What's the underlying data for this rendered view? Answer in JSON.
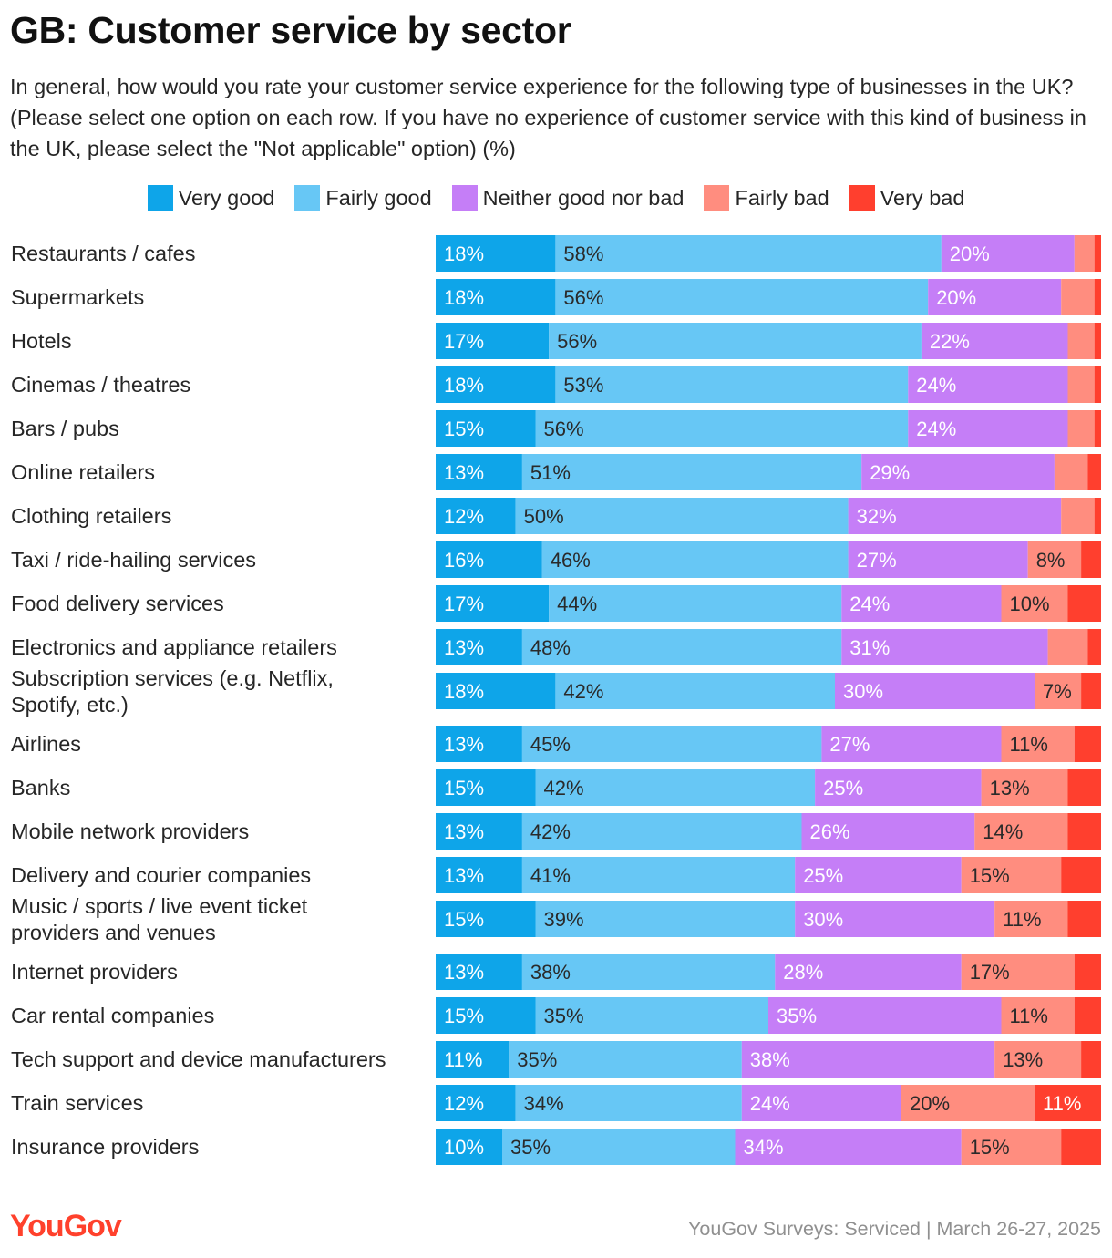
{
  "header": {
    "title": "GB: Customer service by sector",
    "subtitle": "In general, how would you rate your customer service experience for the following type of businesses in the UK? (Please select one option on each row. If you have no experience of customer service with this kind of business in the UK, please select the \"Not applicable\" option) (%)"
  },
  "footer": {
    "logo": "YouGov",
    "source": "YouGov Surveys: Serviced | March 26-27, 2025"
  },
  "chart_data": {
    "type": "bar",
    "orientation": "horizontal",
    "stacked": true,
    "title": "GB: Customer service by sector",
    "xlabel": "",
    "ylabel": "",
    "xlim": [
      0,
      100
    ],
    "legend_position": "top",
    "categories": [
      [
        "Restaurants / cafes"
      ],
      [
        "Supermarkets"
      ],
      [
        "Hotels"
      ],
      [
        "Cinemas / theatres"
      ],
      [
        "Bars / pubs"
      ],
      [
        "Online retailers"
      ],
      [
        "Clothing retailers"
      ],
      [
        "Taxi / ride-hailing services"
      ],
      [
        "Food delivery services"
      ],
      [
        "Electronics and appliance retailers"
      ],
      [
        "Subscription services (e.g. Netflix,",
        "Spotify, etc.)"
      ],
      [
        "Airlines"
      ],
      [
        "Banks"
      ],
      [
        "Mobile network providers"
      ],
      [
        "Delivery and courier companies"
      ],
      [
        "Music / sports / live event ticket",
        "providers and venues"
      ],
      [
        "Internet providers"
      ],
      [
        "Car rental companies"
      ],
      [
        "Tech support and device manufacturers"
      ],
      [
        "Train services"
      ],
      [
        "Insurance providers"
      ]
    ],
    "series": [
      {
        "name": "Very good",
        "color": "#0ea5e9",
        "label_color": "#ffffff",
        "values": [
          18,
          18,
          17,
          18,
          15,
          13,
          12,
          16,
          17,
          13,
          18,
          13,
          15,
          13,
          13,
          15,
          13,
          15,
          11,
          12,
          10
        ]
      },
      {
        "name": "Fairly good",
        "color": "#67c7f5",
        "label_color": "#2a2a2a",
        "values": [
          58,
          56,
          56,
          53,
          56,
          51,
          50,
          46,
          44,
          48,
          42,
          45,
          42,
          42,
          41,
          39,
          38,
          35,
          35,
          34,
          35
        ]
      },
      {
        "name": "Neither good nor bad",
        "color": "#c57ef7",
        "label_color": "#ffffff",
        "values": [
          20,
          20,
          22,
          24,
          24,
          29,
          32,
          27,
          24,
          31,
          30,
          27,
          25,
          26,
          25,
          30,
          28,
          35,
          38,
          24,
          34
        ]
      },
      {
        "name": "Fairly bad",
        "color": "#ff8d7f",
        "label_color": "#2a2a2a",
        "values": [
          3,
          5,
          4,
          4,
          4,
          5,
          5,
          8,
          10,
          6,
          7,
          11,
          13,
          14,
          15,
          11,
          17,
          11,
          13,
          20,
          15
        ]
      },
      {
        "name": "Very bad",
        "color": "#ff3f2e",
        "label_color": "#ffffff",
        "values": [
          1,
          1,
          1,
          1,
          1,
          2,
          1,
          3,
          4,
          1,
          2,
          3,
          4,
          4,
          6,
          5,
          5,
          5,
          3,
          11,
          6
        ]
      }
    ],
    "data_labels": [
      [
        "18%",
        "58%",
        "20%",
        "",
        ""
      ],
      [
        "18%",
        "56%",
        "20%",
        "",
        ""
      ],
      [
        "17%",
        "56%",
        "22%",
        "",
        ""
      ],
      [
        "18%",
        "53%",
        "24%",
        "",
        ""
      ],
      [
        "15%",
        "56%",
        "24%",
        "",
        ""
      ],
      [
        "13%",
        "51%",
        "29%",
        "",
        ""
      ],
      [
        "12%",
        "50%",
        "32%",
        "",
        ""
      ],
      [
        "16%",
        "46%",
        "27%",
        "8%",
        ""
      ],
      [
        "17%",
        "44%",
        "24%",
        "10%",
        ""
      ],
      [
        "13%",
        "48%",
        "31%",
        "",
        ""
      ],
      [
        "18%",
        "42%",
        "30%",
        "7%",
        ""
      ],
      [
        "13%",
        "45%",
        "27%",
        "11%",
        ""
      ],
      [
        "15%",
        "42%",
        "25%",
        "13%",
        ""
      ],
      [
        "13%",
        "42%",
        "26%",
        "14%",
        ""
      ],
      [
        "13%",
        "41%",
        "25%",
        "15%",
        ""
      ],
      [
        "15%",
        "39%",
        "30%",
        "11%",
        ""
      ],
      [
        "13%",
        "38%",
        "28%",
        "17%",
        ""
      ],
      [
        "15%",
        "35%",
        "35%",
        "11%",
        ""
      ],
      [
        "11%",
        "35%",
        "38%",
        "13%",
        ""
      ],
      [
        "12%",
        "34%",
        "24%",
        "20%",
        "11%"
      ],
      [
        "10%",
        "35%",
        "34%",
        "15%",
        ""
      ]
    ]
  }
}
